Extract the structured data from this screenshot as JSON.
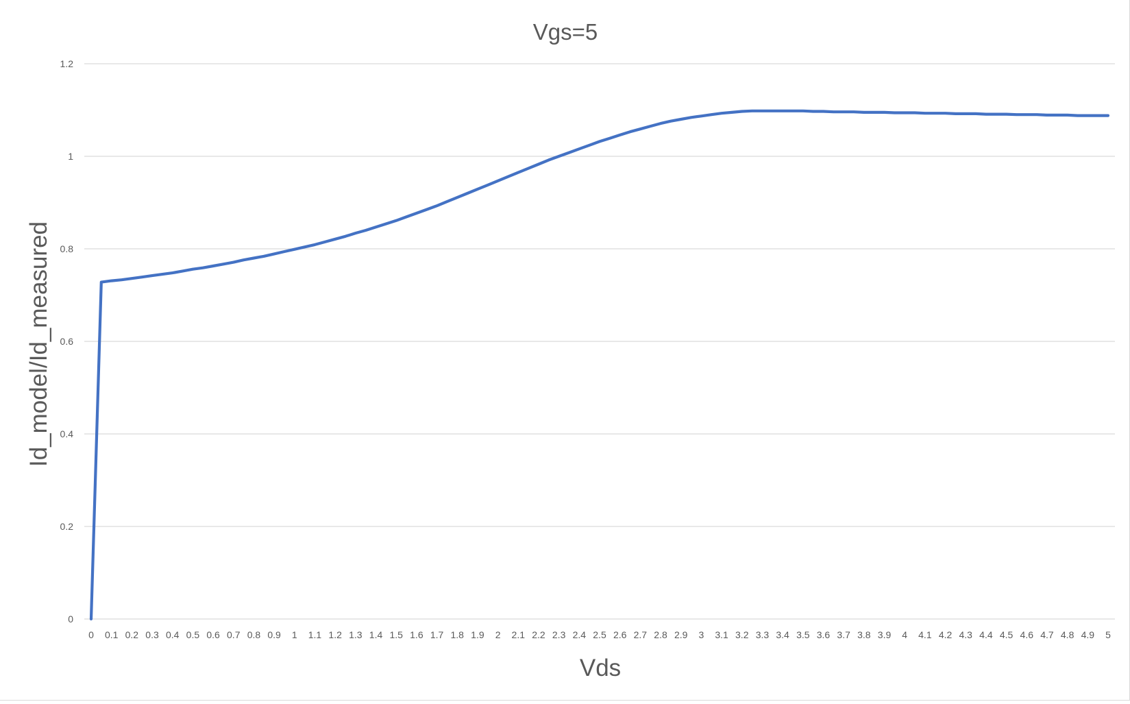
{
  "chart_data": {
    "type": "line",
    "title": "Vgs=5",
    "xlabel": "Vds",
    "ylabel": "Id_model/Id_measured",
    "ylim": [
      0,
      1.2
    ],
    "yticks": [
      0,
      0.2,
      0.4,
      0.6,
      0.8,
      1,
      1.2
    ],
    "ytick_labels": [
      "0",
      "0.2",
      "0.4",
      "0.6",
      "0.8",
      "1",
      "1.2"
    ],
    "grid": true,
    "legend": "none",
    "x_labels": [
      "0",
      "0.1",
      "0.2",
      "0.3",
      "0.4",
      "0.5",
      "0.6",
      "0.7",
      "0.8",
      "0.9",
      "1",
      "1.1",
      "1.2",
      "1.3",
      "1.4",
      "1.5",
      "1.6",
      "1.7",
      "1.8",
      "1.9",
      "2",
      "2.1",
      "2.2",
      "2.3",
      "2.4",
      "2.5",
      "2.6",
      "2.7",
      "2.8",
      "2.9",
      "3",
      "3.1",
      "3.2",
      "3.3",
      "3.4",
      "3.5",
      "3.6",
      "3.7",
      "3.8",
      "3.9",
      "4",
      "4.1",
      "4.2",
      "4.3",
      "4.4",
      "4.5",
      "4.6",
      "4.7",
      "4.8",
      "4.9",
      "5"
    ],
    "series": [
      {
        "color": "#4472c4",
        "x": [
          0,
          0.05,
          0.1,
          0.15,
          0.2,
          0.25,
          0.3,
          0.35,
          0.4,
          0.45,
          0.5,
          0.55,
          0.6,
          0.65,
          0.7,
          0.75,
          0.8,
          0.85,
          0.9,
          0.95,
          1,
          1.05,
          1.1,
          1.15,
          1.2,
          1.25,
          1.3,
          1.35,
          1.4,
          1.45,
          1.5,
          1.55,
          1.6,
          1.65,
          1.7,
          1.75,
          1.8,
          1.85,
          1.9,
          1.95,
          2,
          2.05,
          2.1,
          2.15,
          2.2,
          2.25,
          2.3,
          2.35,
          2.4,
          2.45,
          2.5,
          2.55,
          2.6,
          2.65,
          2.7,
          2.75,
          2.8,
          2.85,
          2.9,
          2.95,
          3,
          3.05,
          3.1,
          3.15,
          3.2,
          3.25,
          3.3,
          3.35,
          3.4,
          3.45,
          3.5,
          3.55,
          3.6,
          3.65,
          3.7,
          3.75,
          3.8,
          3.85,
          3.9,
          3.95,
          4,
          4.05,
          4.1,
          4.15,
          4.2,
          4.25,
          4.3,
          4.35,
          4.4,
          4.45,
          4.5,
          4.55,
          4.6,
          4.65,
          4.7,
          4.75,
          4.8,
          4.85,
          4.9,
          4.95,
          5
        ],
        "values": [
          0,
          0.728,
          0.731,
          0.733,
          0.736,
          0.739,
          0.742,
          0.745,
          0.748,
          0.752,
          0.756,
          0.759,
          0.763,
          0.767,
          0.771,
          0.776,
          0.78,
          0.784,
          0.789,
          0.794,
          0.799,
          0.804,
          0.809,
          0.815,
          0.821,
          0.827,
          0.834,
          0.84,
          0.847,
          0.854,
          0.861,
          0.869,
          0.877,
          0.885,
          0.893,
          0.902,
          0.911,
          0.92,
          0.929,
          0.938,
          0.947,
          0.956,
          0.965,
          0.974,
          0.983,
          0.992,
          1.0,
          1.008,
          1.016,
          1.024,
          1.032,
          1.039,
          1.046,
          1.053,
          1.059,
          1.065,
          1.071,
          1.076,
          1.08,
          1.084,
          1.087,
          1.09,
          1.093,
          1.095,
          1.097,
          1.098,
          1.098,
          1.098,
          1.098,
          1.098,
          1.098,
          1.097,
          1.097,
          1.096,
          1.096,
          1.096,
          1.095,
          1.095,
          1.095,
          1.094,
          1.094,
          1.094,
          1.093,
          1.093,
          1.093,
          1.092,
          1.092,
          1.092,
          1.091,
          1.091,
          1.091,
          1.09,
          1.09,
          1.09,
          1.089,
          1.089,
          1.089,
          1.088,
          1.088,
          1.088,
          1.088
        ]
      }
    ]
  }
}
